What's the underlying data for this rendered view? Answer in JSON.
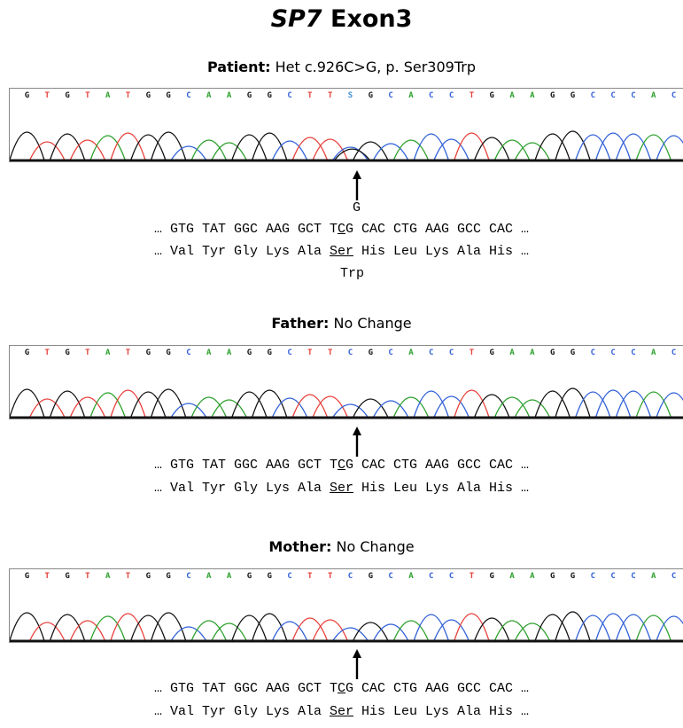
{
  "title": {
    "gene": "SP7",
    "rest": " Exon3"
  },
  "base_colors": {
    "G": "#111111",
    "T": "#e8403a",
    "A": "#2ca02c",
    "C": "#2f5fd8",
    "S": "#3a8fd8"
  },
  "panels": [
    {
      "label_bold": "Patient:",
      "label_rest": " Het c.926C>G, p. Ser309Trp",
      "bases": [
        "G",
        "T",
        "G",
        "T",
        "A",
        "T",
        "G",
        "G",
        "C",
        "A",
        "A",
        "G",
        "G",
        "C",
        "T",
        "T",
        "S",
        "G",
        "C",
        "A",
        "C",
        "C",
        "T",
        "G",
        "A",
        "A",
        "G",
        "G",
        "C",
        "C",
        "C",
        "A",
        "C"
      ],
      "mutant_base": "G",
      "dna": {
        "pre": "… GTG TAT GGC AAG GCT T",
        "mark": "C",
        "post": "G CAC CTG AAG GCC CAC …"
      },
      "protein": {
        "pre": "… Val Tyr Gly Lys Ala ",
        "mark": "Ser",
        "post": " His Leu Lys Ala His …"
      },
      "protein_change": "Trp"
    },
    {
      "label_bold": "Father:",
      "label_rest": " No Change",
      "bases": [
        "G",
        "T",
        "G",
        "T",
        "A",
        "T",
        "G",
        "G",
        "C",
        "A",
        "A",
        "G",
        "G",
        "C",
        "T",
        "T",
        "C",
        "G",
        "C",
        "A",
        "C",
        "C",
        "T",
        "G",
        "A",
        "A",
        "G",
        "G",
        "C",
        "C",
        "C",
        "A",
        "C"
      ],
      "dna": {
        "pre": "… GTG TAT GGC AAG GCT T",
        "mark": "C",
        "post": "G CAC CTG AAG GCC CAC …"
      },
      "protein": {
        "pre": "… Val Tyr Gly Lys Ala ",
        "mark": "Ser",
        "post": " His Leu Lys Ala His …"
      }
    },
    {
      "label_bold": "Mother:",
      "label_rest": "  No Change",
      "bases": [
        "G",
        "T",
        "G",
        "T",
        "A",
        "T",
        "G",
        "G",
        "C",
        "A",
        "A",
        "G",
        "G",
        "C",
        "T",
        "T",
        "C",
        "G",
        "C",
        "A",
        "C",
        "C",
        "T",
        "G",
        "A",
        "A",
        "G",
        "G",
        "C",
        "C",
        "C",
        "A",
        "C"
      ],
      "dna": {
        "pre": "… GTG TAT GGC AAG GCT T",
        "mark": "C",
        "post": "G CAC CTG AAG GCC CAC …"
      },
      "protein": {
        "pre": "… Val Tyr Gly Lys Ala ",
        "mark": "Ser",
        "post": " His Leu Lys Ala His …"
      }
    }
  ]
}
